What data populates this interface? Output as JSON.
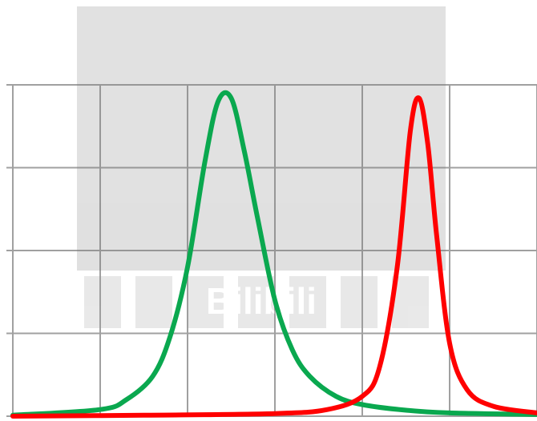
{
  "chart_data": {
    "type": "line",
    "title": "",
    "xlabel": "",
    "ylabel": "",
    "xlim": [
      0,
      6
    ],
    "ylim": [
      0,
      1
    ],
    "grid": true,
    "legend": "none",
    "series": [
      {
        "color": "#0aa84f",
        "x": [
          0.0,
          1.0,
          1.3,
          1.6,
          1.8,
          2.0,
          2.2,
          2.35,
          2.5,
          2.65,
          2.8,
          3.0,
          3.2,
          3.4,
          3.7,
          4.0,
          4.5,
          5.0,
          6.0
        ],
        "y": [
          0.003,
          0.02,
          0.05,
          0.12,
          0.24,
          0.45,
          0.77,
          0.95,
          0.96,
          0.8,
          0.6,
          0.35,
          0.2,
          0.12,
          0.06,
          0.035,
          0.018,
          0.01,
          0.005
        ]
      },
      {
        "color": "#ff0000",
        "x": [
          0.0,
          1.5,
          3.0,
          3.6,
          4.0,
          4.2,
          4.4,
          4.55,
          4.65,
          4.75,
          4.85,
          5.0,
          5.2,
          5.5,
          6.0
        ],
        "y": [
          0.0,
          0.003,
          0.008,
          0.02,
          0.06,
          0.15,
          0.45,
          0.86,
          0.96,
          0.82,
          0.55,
          0.22,
          0.08,
          0.03,
          0.01
        ]
      }
    ]
  },
  "watermark": {
    "label": "Bilibili"
  }
}
